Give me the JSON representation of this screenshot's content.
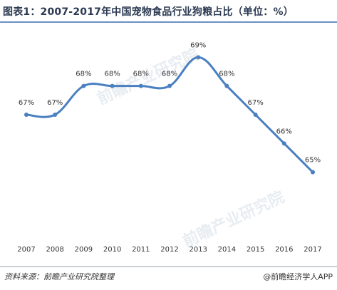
{
  "title": "图表1：2007-2017年中国宠物食品行业狗粮占比（单位：%）",
  "footer": {
    "source": "资料来源：前瞻产业研究院整理",
    "brand": "@前瞻经济学人APP"
  },
  "watermark": "前瞻产业研究院",
  "colors": {
    "line": "#4a7fc0",
    "title": "#2b3a52",
    "rule": "#6b90c4"
  },
  "chart_data": {
    "type": "line",
    "x": [
      "2007",
      "2008",
      "2009",
      "2010",
      "2011",
      "2012",
      "2013",
      "2014",
      "2015",
      "2016",
      "2017"
    ],
    "series": [
      {
        "values": [
          67,
          67,
          68,
          68,
          68,
          68,
          69,
          68,
          67,
          66,
          65
        ]
      }
    ],
    "data_labels": [
      "67%",
      "67%",
      "68%",
      "68%",
      "68%",
      "68%",
      "69%",
      "68%",
      "67%",
      "66%",
      "65%"
    ],
    "ylim": [
      64,
      70
    ],
    "grid": false,
    "legend": "none"
  }
}
